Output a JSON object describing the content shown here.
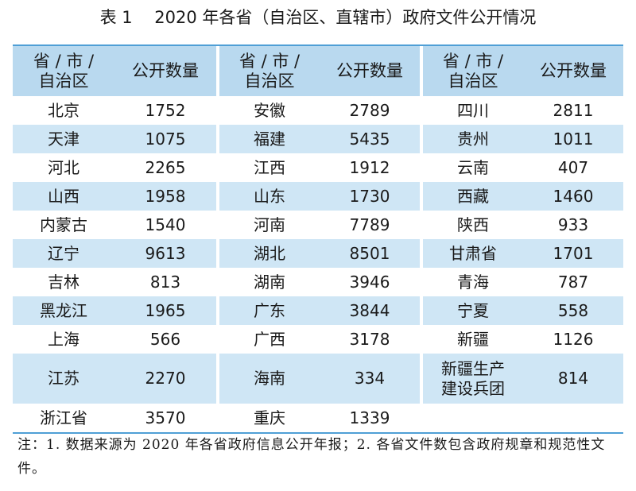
{
  "title": "表 1　 2020 年各省（自治区、直辖市）政府文件公开情况",
  "header": {
    "region_label": "省 / 市 /\n自治区",
    "count_label": "公开数量"
  },
  "columns": [
    {
      "rows": [
        {
          "region": "北京",
          "count": "1752"
        },
        {
          "region": "天津",
          "count": "1075"
        },
        {
          "region": "河北",
          "count": "2265"
        },
        {
          "region": "山西",
          "count": "1958"
        },
        {
          "region": "内蒙古",
          "count": "1540"
        },
        {
          "region": "辽宁",
          "count": "9613"
        },
        {
          "region": "吉林",
          "count": "813"
        },
        {
          "region": "黑龙江",
          "count": "1965"
        },
        {
          "region": "上海",
          "count": "566"
        },
        {
          "region": "江苏",
          "count": "2270"
        },
        {
          "region": "浙江省",
          "count": "3570"
        }
      ]
    },
    {
      "rows": [
        {
          "region": "安徽",
          "count": "2789"
        },
        {
          "region": "福建",
          "count": "5435"
        },
        {
          "region": "江西",
          "count": "1912"
        },
        {
          "region": "山东",
          "count": "1730"
        },
        {
          "region": "河南",
          "count": "7789"
        },
        {
          "region": "湖北",
          "count": "8501"
        },
        {
          "region": "湖南",
          "count": "3946"
        },
        {
          "region": "广东",
          "count": "3844"
        },
        {
          "region": "广西",
          "count": "3178"
        },
        {
          "region": "海南",
          "count": "334"
        },
        {
          "region": "重庆",
          "count": "1339"
        }
      ]
    },
    {
      "rows": [
        {
          "region": "四川",
          "count": "2811"
        },
        {
          "region": "贵州",
          "count": "1011"
        },
        {
          "region": "云南",
          "count": "407"
        },
        {
          "region": "西藏",
          "count": "1460"
        },
        {
          "region": "陕西",
          "count": "933"
        },
        {
          "region": "甘肃省",
          "count": "1701"
        },
        {
          "region": "青海",
          "count": "787"
        },
        {
          "region": "宁夏",
          "count": "558"
        },
        {
          "region": "新疆",
          "count": "1126"
        },
        {
          "region": "新疆生产\n建设兵团",
          "count": "814"
        },
        {
          "region": "",
          "count": ""
        }
      ]
    }
  ],
  "note": "注：1. 数据来源为 2020 年各省政府信息公开年报；2. 各省文件数包含政府规章和规范性文件。",
  "colors": {
    "header_bg": "#b9d9ef",
    "stripe_bg": "#cfe6f5",
    "rule": "#4f9fd6"
  }
}
